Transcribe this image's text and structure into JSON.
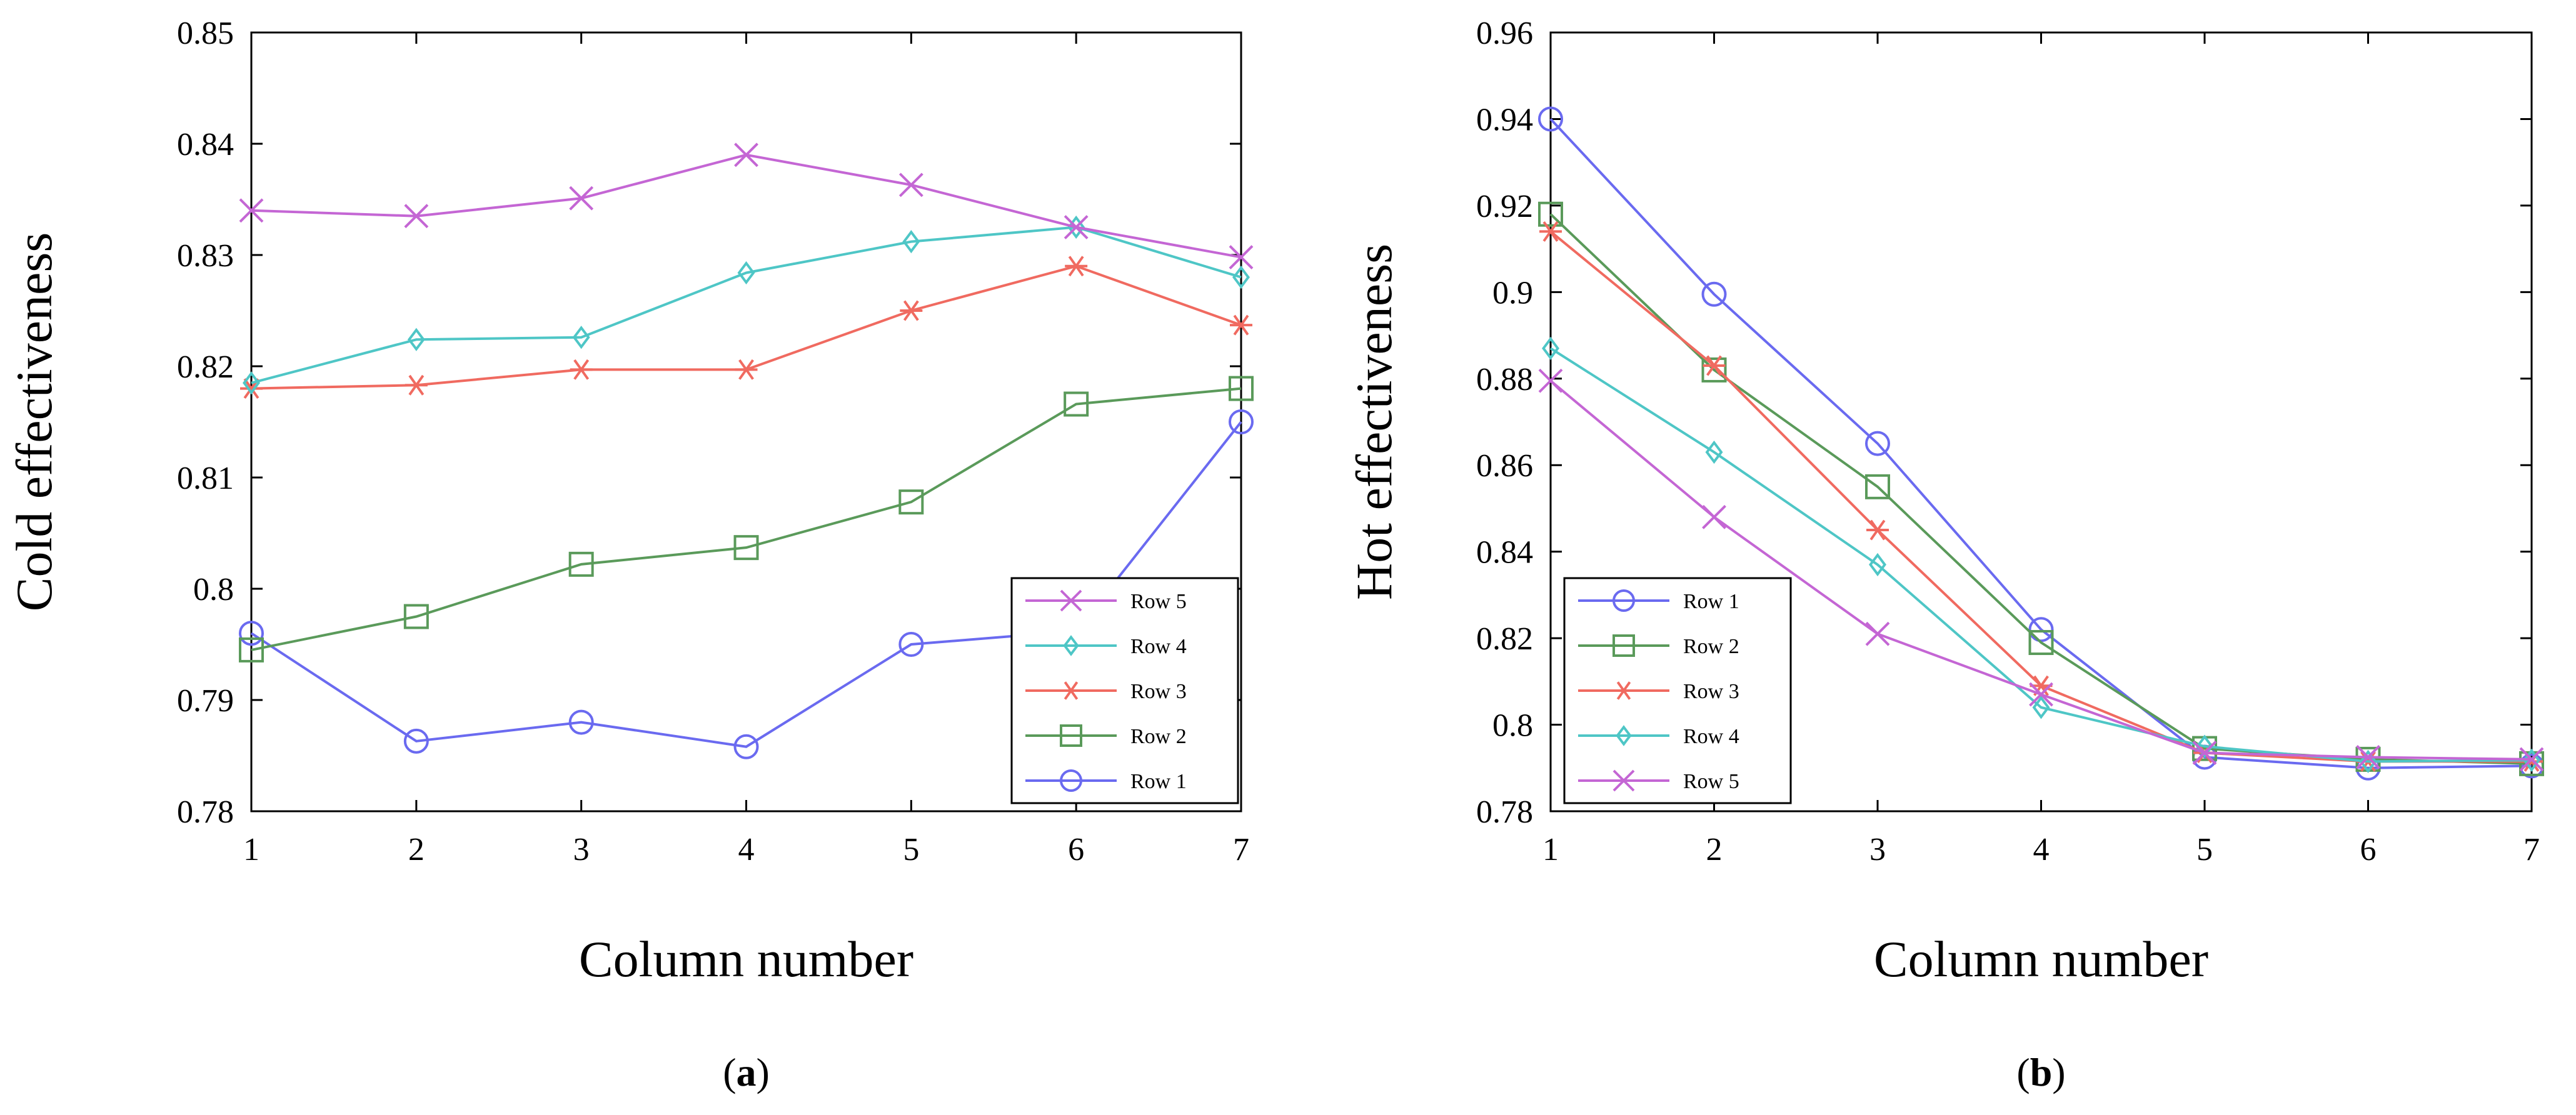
{
  "chart_data": [
    {
      "type": "line",
      "panel_label": "a",
      "xlabel": "Column number",
      "ylabel": "Cold effectiveness",
      "x": [
        1,
        2,
        3,
        4,
        5,
        6,
        7
      ],
      "xlim": [
        1,
        7
      ],
      "ylim": [
        0.78,
        0.85
      ],
      "xticks": [
        "1",
        "2",
        "3",
        "4",
        "5",
        "6",
        "7"
      ],
      "yticks": [
        "0.78",
        "0.79",
        "0.8",
        "0.81",
        "0.82",
        "0.83",
        "0.84",
        "0.85"
      ],
      "grid": false,
      "legend_position": "bottom-right",
      "legend_order": [
        "Row 5",
        "Row 4",
        "Row 3",
        "Row 2",
        "Row 1"
      ],
      "series": [
        {
          "name": "Row 1",
          "color": "#6a6af0",
          "marker": "circle",
          "values": [
            0.796,
            0.7863,
            0.788,
            0.7858,
            0.795,
            0.7962,
            0.815
          ]
        },
        {
          "name": "Row 2",
          "color": "#5a9a5a",
          "marker": "square",
          "values": [
            0.7945,
            0.7975,
            0.8022,
            0.8037,
            0.8078,
            0.8166,
            0.818
          ]
        },
        {
          "name": "Row 3",
          "color": "#f06a60",
          "marker": "asterisk",
          "values": [
            0.818,
            0.8183,
            0.8197,
            0.8197,
            0.825,
            0.829,
            0.8237
          ]
        },
        {
          "name": "Row 4",
          "color": "#4ec6c6",
          "marker": "diamond",
          "values": [
            0.8185,
            0.8224,
            0.8226,
            0.8284,
            0.8312,
            0.8325,
            0.828
          ]
        },
        {
          "name": "Row 5",
          "color": "#c466d4",
          "marker": "x",
          "values": [
            0.834,
            0.8335,
            0.8351,
            0.839,
            0.8363,
            0.8325,
            0.8298
          ]
        }
      ]
    },
    {
      "type": "line",
      "panel_label": "b",
      "xlabel": "Column number",
      "ylabel": "Hot effectiveness",
      "x": [
        1,
        2,
        3,
        4,
        5,
        6,
        7
      ],
      "xlim": [
        1,
        7
      ],
      "ylim": [
        0.78,
        0.96
      ],
      "xticks": [
        "1",
        "2",
        "3",
        "4",
        "5",
        "6",
        "7"
      ],
      "yticks": [
        "0.78",
        "0.8",
        "0.82",
        "0.84",
        "0.86",
        "0.88",
        "0.9",
        "0.92",
        "0.94",
        "0.96"
      ],
      "grid": false,
      "legend_position": "bottom-left",
      "legend_order": [
        "Row 1",
        "Row 2",
        "Row 3",
        "Row 4",
        "Row 5"
      ],
      "series": [
        {
          "name": "Row 1",
          "color": "#6a6af0",
          "marker": "circle",
          "values": [
            0.94,
            0.8995,
            0.865,
            0.822,
            0.7925,
            0.79,
            0.7905
          ]
        },
        {
          "name": "Row 2",
          "color": "#5a9a5a",
          "marker": "square",
          "values": [
            0.918,
            0.882,
            0.855,
            0.819,
            0.7945,
            0.792,
            0.791
          ]
        },
        {
          "name": "Row 3",
          "color": "#f06a60",
          "marker": "asterisk",
          "values": [
            0.914,
            0.883,
            0.845,
            0.809,
            0.7935,
            0.7915,
            0.7915
          ]
        },
        {
          "name": "Row 4",
          "color": "#4ec6c6",
          "marker": "diamond",
          "values": [
            0.887,
            0.863,
            0.837,
            0.804,
            0.795,
            0.7915,
            0.7918
          ]
        },
        {
          "name": "Row 5",
          "color": "#c466d4",
          "marker": "x",
          "values": [
            0.8795,
            0.848,
            0.821,
            0.807,
            0.7935,
            0.7925,
            0.792
          ]
        }
      ]
    }
  ]
}
